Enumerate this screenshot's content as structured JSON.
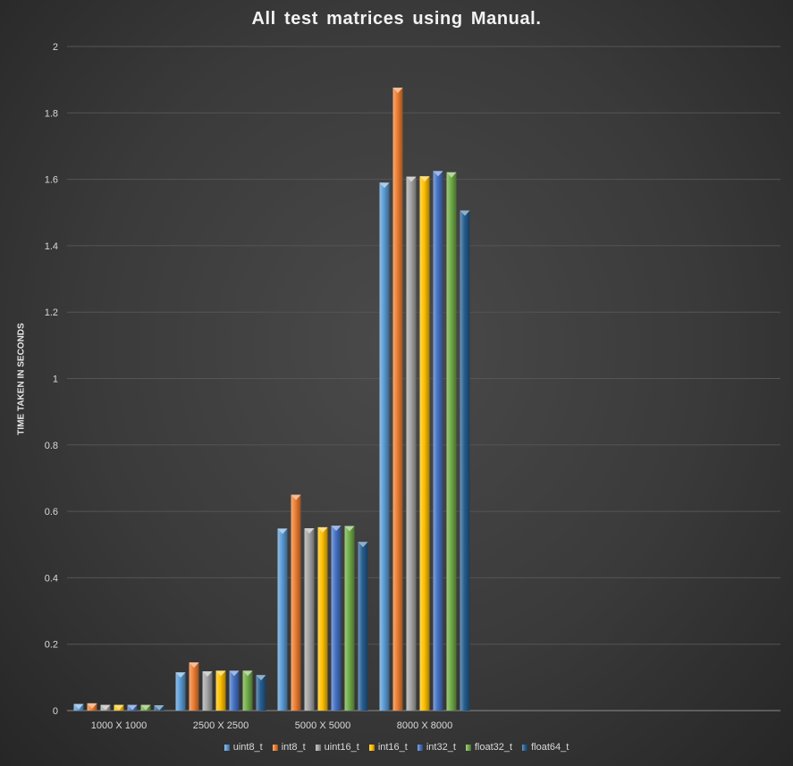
{
  "chart_data": {
    "type": "bar",
    "title": "All test matrices  using  Manual.",
    "xlabel": "",
    "ylabel": "TIME TAKEN IN SECONDS",
    "ylim": [
      0,
      2
    ],
    "yticks": [
      0,
      0.2,
      0.4,
      0.6,
      0.8,
      1,
      1.2,
      1.4,
      1.6,
      1.8,
      2
    ],
    "ytick_labels": [
      "0",
      "0.2",
      "0.4",
      "0.6",
      "0.8",
      "1",
      "1.2",
      "1.4",
      "1.6",
      "1.8",
      "2"
    ],
    "categories": [
      "1000 X 1000",
      "2500 X 2500",
      "5000 X 5000",
      "8000 X 8000"
    ],
    "grid": true,
    "legend_position": "bottom",
    "series": [
      {
        "name": "uint8_t",
        "color": "#5b9bd5",
        "values": [
          0.02,
          0.115,
          0.548,
          1.59
        ]
      },
      {
        "name": "int8_t",
        "color": "#ed7d31",
        "values": [
          0.022,
          0.145,
          0.65,
          1.876
        ]
      },
      {
        "name": "uint16_t",
        "color": "#a5a5a5",
        "values": [
          0.017,
          0.118,
          0.549,
          1.608
        ]
      },
      {
        "name": "int16_t",
        "color": "#ffc000",
        "values": [
          0.017,
          0.12,
          0.552,
          1.609
        ]
      },
      {
        "name": "int32_t",
        "color": "#4472c4",
        "values": [
          0.017,
          0.12,
          0.557,
          1.625
        ]
      },
      {
        "name": "float32_t",
        "color": "#70ad47",
        "values": [
          0.017,
          0.12,
          0.556,
          1.621
        ]
      },
      {
        "name": "float64_t",
        "color": "#255e91",
        "values": [
          0.016,
          0.107,
          0.508,
          1.506
        ]
      }
    ]
  }
}
